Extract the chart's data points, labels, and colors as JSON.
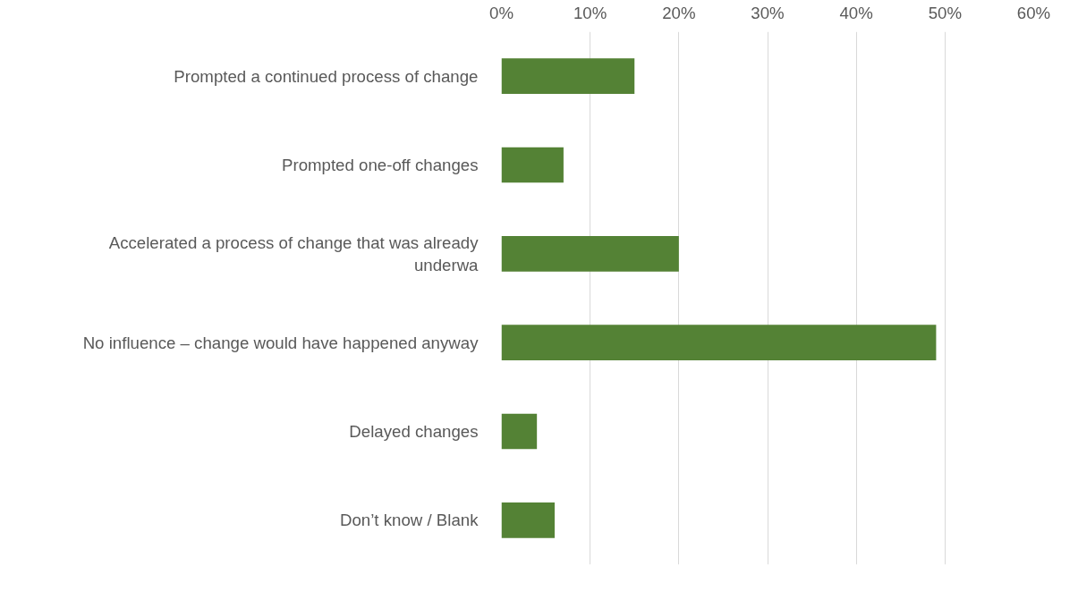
{
  "chart_data": {
    "type": "bar",
    "orientation": "horizontal",
    "categories": [
      "Prompted a continued process of change",
      "Prompted one-off changes",
      "Accelerated a process of change that was already underwa",
      "No influence – change would have happened anyway",
      "Delayed changes",
      "Don’t know / Blank"
    ],
    "values": [
      15,
      7,
      20,
      49,
      4,
      6
    ],
    "color": "#548235",
    "xlim": [
      0,
      60
    ],
    "xticks": [
      {
        "value": 0,
        "label": "0%"
      },
      {
        "value": 10,
        "label": "10%"
      },
      {
        "value": 20,
        "label": "20%"
      },
      {
        "value": 30,
        "label": "30%"
      },
      {
        "value": 40,
        "label": "40%"
      },
      {
        "value": 50,
        "label": "50%"
      },
      {
        "value": 60,
        "label": "60%"
      }
    ],
    "grid": "x"
  }
}
